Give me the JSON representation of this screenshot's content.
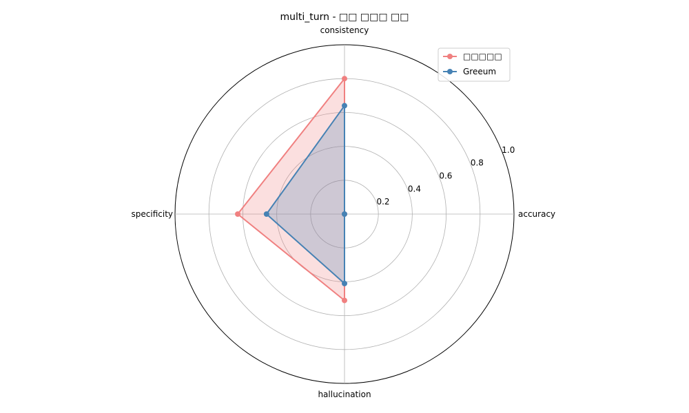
{
  "chart_data": {
    "type": "radar",
    "title": "multi_turn - □□ □□□ □□",
    "axes": [
      "accuracy",
      "consistency",
      "specificity",
      "hallucination"
    ],
    "rlim": [
      0,
      1.0
    ],
    "r_ticks": [
      0.2,
      0.4,
      0.6,
      0.8,
      1.0
    ],
    "r_tick_labels": [
      "0.2",
      "0.4",
      "0.6",
      "0.8",
      "1.0"
    ],
    "grid": true,
    "legend_position": "top-right",
    "series": [
      {
        "name": "□□□□□",
        "color": "#f08080",
        "fill_opacity": 0.25,
        "values": [
          0.0,
          0.8,
          0.63,
          0.51
        ]
      },
      {
        "name": "Greeum",
        "color": "#4682b4",
        "fill_opacity": 0.25,
        "values": [
          0.0,
          0.64,
          0.46,
          0.41
        ]
      }
    ]
  }
}
